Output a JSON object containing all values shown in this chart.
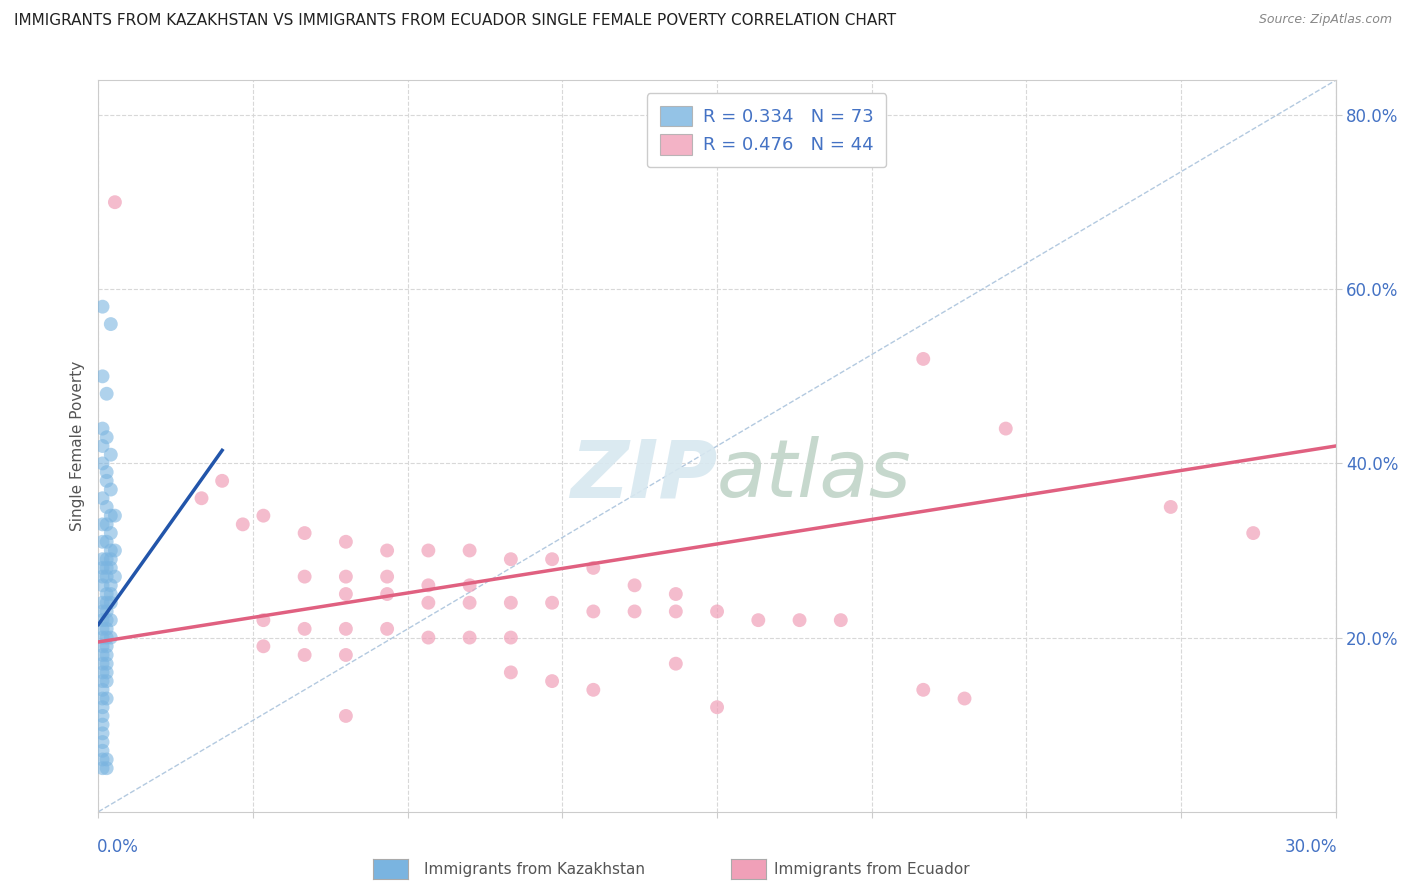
{
  "title": "IMMIGRANTS FROM KAZAKHSTAN VS IMMIGRANTS FROM ECUADOR SINGLE FEMALE POVERTY CORRELATION CHART",
  "source": "Source: ZipAtlas.com",
  "ylabel": "Single Female Poverty",
  "watermark": "ZIPatlas",
  "kaz_color": "#7ab4e0",
  "ecu_color": "#f0a0b8",
  "kaz_scatter": [
    [
      0.001,
      0.58
    ],
    [
      0.003,
      0.56
    ],
    [
      0.001,
      0.5
    ],
    [
      0.002,
      0.48
    ],
    [
      0.001,
      0.44
    ],
    [
      0.002,
      0.43
    ],
    [
      0.001,
      0.42
    ],
    [
      0.003,
      0.41
    ],
    [
      0.001,
      0.4
    ],
    [
      0.002,
      0.39
    ],
    [
      0.002,
      0.38
    ],
    [
      0.003,
      0.37
    ],
    [
      0.001,
      0.36
    ],
    [
      0.002,
      0.35
    ],
    [
      0.003,
      0.34
    ],
    [
      0.004,
      0.34
    ],
    [
      0.001,
      0.33
    ],
    [
      0.002,
      0.33
    ],
    [
      0.003,
      0.32
    ],
    [
      0.001,
      0.31
    ],
    [
      0.002,
      0.31
    ],
    [
      0.003,
      0.3
    ],
    [
      0.004,
      0.3
    ],
    [
      0.001,
      0.29
    ],
    [
      0.002,
      0.29
    ],
    [
      0.003,
      0.29
    ],
    [
      0.001,
      0.28
    ],
    [
      0.002,
      0.28
    ],
    [
      0.003,
      0.28
    ],
    [
      0.004,
      0.27
    ],
    [
      0.001,
      0.27
    ],
    [
      0.002,
      0.27
    ],
    [
      0.003,
      0.26
    ],
    [
      0.001,
      0.26
    ],
    [
      0.002,
      0.25
    ],
    [
      0.003,
      0.25
    ],
    [
      0.001,
      0.24
    ],
    [
      0.002,
      0.24
    ],
    [
      0.003,
      0.24
    ],
    [
      0.001,
      0.23
    ],
    [
      0.002,
      0.23
    ],
    [
      0.001,
      0.22
    ],
    [
      0.002,
      0.22
    ],
    [
      0.003,
      0.22
    ],
    [
      0.001,
      0.21
    ],
    [
      0.002,
      0.21
    ],
    [
      0.001,
      0.2
    ],
    [
      0.002,
      0.2
    ],
    [
      0.003,
      0.2
    ],
    [
      0.001,
      0.19
    ],
    [
      0.002,
      0.19
    ],
    [
      0.001,
      0.18
    ],
    [
      0.002,
      0.18
    ],
    [
      0.001,
      0.17
    ],
    [
      0.002,
      0.17
    ],
    [
      0.001,
      0.16
    ],
    [
      0.002,
      0.16
    ],
    [
      0.001,
      0.15
    ],
    [
      0.002,
      0.15
    ],
    [
      0.001,
      0.14
    ],
    [
      0.001,
      0.13
    ],
    [
      0.002,
      0.13
    ],
    [
      0.001,
      0.12
    ],
    [
      0.001,
      0.11
    ],
    [
      0.001,
      0.1
    ],
    [
      0.001,
      0.09
    ],
    [
      0.001,
      0.08
    ],
    [
      0.001,
      0.07
    ],
    [
      0.001,
      0.06
    ],
    [
      0.002,
      0.06
    ],
    [
      0.001,
      0.05
    ],
    [
      0.002,
      0.05
    ]
  ],
  "ecu_scatter": [
    [
      0.004,
      0.7
    ],
    [
      0.03,
      0.38
    ],
    [
      0.025,
      0.36
    ],
    [
      0.04,
      0.34
    ],
    [
      0.035,
      0.33
    ],
    [
      0.05,
      0.32
    ],
    [
      0.06,
      0.31
    ],
    [
      0.07,
      0.3
    ],
    [
      0.08,
      0.3
    ],
    [
      0.09,
      0.3
    ],
    [
      0.1,
      0.29
    ],
    [
      0.11,
      0.29
    ],
    [
      0.12,
      0.28
    ],
    [
      0.05,
      0.27
    ],
    [
      0.06,
      0.27
    ],
    [
      0.07,
      0.27
    ],
    [
      0.08,
      0.26
    ],
    [
      0.09,
      0.26
    ],
    [
      0.13,
      0.26
    ],
    [
      0.14,
      0.25
    ],
    [
      0.06,
      0.25
    ],
    [
      0.07,
      0.25
    ],
    [
      0.08,
      0.24
    ],
    [
      0.09,
      0.24
    ],
    [
      0.1,
      0.24
    ],
    [
      0.11,
      0.24
    ],
    [
      0.12,
      0.23
    ],
    [
      0.13,
      0.23
    ],
    [
      0.14,
      0.23
    ],
    [
      0.15,
      0.23
    ],
    [
      0.16,
      0.22
    ],
    [
      0.17,
      0.22
    ],
    [
      0.18,
      0.22
    ],
    [
      0.04,
      0.22
    ],
    [
      0.05,
      0.21
    ],
    [
      0.06,
      0.21
    ],
    [
      0.07,
      0.21
    ],
    [
      0.08,
      0.2
    ],
    [
      0.09,
      0.2
    ],
    [
      0.1,
      0.2
    ],
    [
      0.04,
      0.19
    ],
    [
      0.05,
      0.18
    ],
    [
      0.06,
      0.18
    ],
    [
      0.14,
      0.17
    ],
    [
      0.1,
      0.16
    ],
    [
      0.11,
      0.15
    ],
    [
      0.12,
      0.14
    ],
    [
      0.2,
      0.14
    ],
    [
      0.21,
      0.13
    ],
    [
      0.15,
      0.12
    ],
    [
      0.06,
      0.11
    ],
    [
      0.2,
      0.52
    ],
    [
      0.22,
      0.44
    ],
    [
      0.26,
      0.35
    ],
    [
      0.28,
      0.32
    ]
  ],
  "kaz_line_x": [
    0.0,
    0.03
  ],
  "kaz_line_y": [
    0.215,
    0.415
  ],
  "ecu_line_x": [
    0.0,
    0.3
  ],
  "ecu_line_y": [
    0.195,
    0.42
  ],
  "ref_line_x": [
    0.0,
    0.3
  ],
  "ref_line_y": [
    0.0,
    0.84
  ],
  "xmin": 0.0,
  "xmax": 0.3,
  "ymin": 0.0,
  "ymax": 0.84,
  "title_fontsize": 11,
  "source_fontsize": 9
}
